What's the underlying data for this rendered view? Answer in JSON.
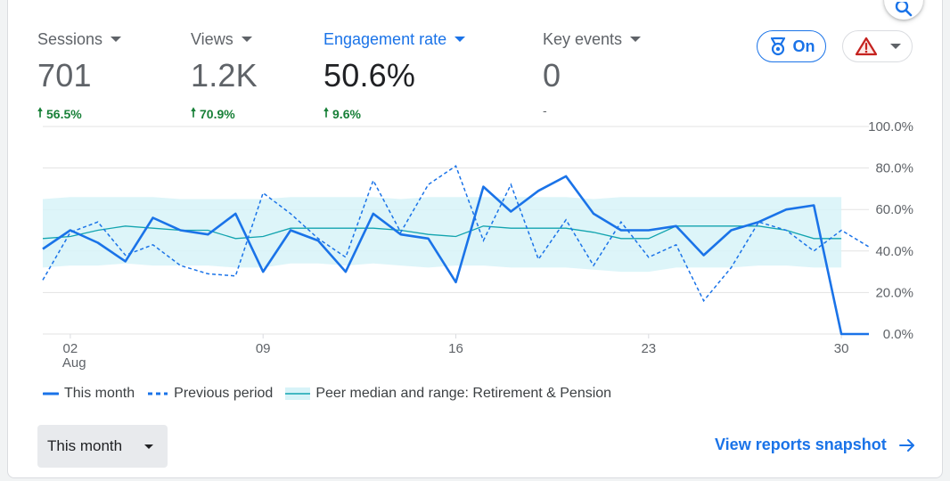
{
  "metrics": [
    {
      "label": "Sessions",
      "value": "701",
      "delta": "56.5%",
      "direction": "up"
    },
    {
      "label": "Views",
      "value": "1.2K",
      "delta": "70.9%",
      "direction": "up"
    },
    {
      "label": "Engagement rate",
      "value": "50.6%",
      "delta": "9.6%",
      "direction": "up",
      "active": true
    },
    {
      "label": "Key events",
      "value": "0",
      "delta": "-",
      "direction": "none"
    }
  ],
  "chips": {
    "insights_label": "On",
    "insights_icon": "award-ribbon-icon",
    "warning_icon": "warning-triangle-icon"
  },
  "colors": {
    "accent": "#1a73e8",
    "positive": "#188038",
    "peer_line": "#12a4af",
    "peer_band": "#d7f3f8",
    "warning": "#c5221f"
  },
  "chart_data": {
    "type": "line",
    "xlabel": "",
    "ylabel": "",
    "x_month_label": "Aug",
    "x_ticks": [
      {
        "day": 2,
        "label": "02"
      },
      {
        "day": 9,
        "label": "09"
      },
      {
        "day": 16,
        "label": "16"
      },
      {
        "day": 23,
        "label": "23"
      },
      {
        "day": 30,
        "label": "30"
      }
    ],
    "x_range": [
      1,
      31
    ],
    "ylim": [
      0,
      100
    ],
    "y_ticks": [
      "0.0%",
      "20.0%",
      "40.0%",
      "60.0%",
      "80.0%",
      "100.0%"
    ],
    "y_tick_values": [
      0,
      20,
      40,
      60,
      80,
      100
    ],
    "grid": true,
    "legend_position": "bottom-left",
    "series": [
      {
        "name": "This month",
        "style": "solid",
        "x": [
          1,
          2,
          3,
          4,
          5,
          6,
          7,
          8,
          9,
          10,
          11,
          12,
          13,
          14,
          15,
          16,
          17,
          18,
          19,
          20,
          21,
          22,
          23,
          24,
          25,
          26,
          27,
          28,
          29,
          30,
          31
        ],
        "values": [
          41,
          50,
          44,
          35,
          56,
          50,
          48,
          58,
          30,
          50,
          45,
          30,
          58,
          48,
          46,
          25,
          71,
          59,
          69,
          76,
          58,
          50,
          50,
          52,
          38,
          50,
          54,
          60,
          62,
          0,
          0
        ]
      },
      {
        "name": "Previous period",
        "style": "dashed",
        "x": [
          1,
          2,
          3,
          4,
          5,
          6,
          7,
          8,
          9,
          10,
          11,
          12,
          13,
          14,
          15,
          16,
          17,
          18,
          19,
          20,
          21,
          22,
          23,
          24,
          25,
          26,
          27,
          28,
          29,
          30,
          31
        ],
        "values": [
          26,
          49,
          54,
          38,
          43,
          33,
          29,
          28,
          68,
          58,
          46,
          37,
          74,
          49,
          72,
          81,
          45,
          72,
          36,
          55,
          33,
          54,
          37,
          43,
          16,
          32,
          54,
          50,
          40,
          50,
          42
        ]
      },
      {
        "name": "Peer median and range: Retirement & Pension",
        "style": "band",
        "x": [
          1,
          2,
          3,
          4,
          5,
          6,
          7,
          8,
          9,
          10,
          11,
          12,
          13,
          14,
          15,
          16,
          17,
          18,
          19,
          20,
          21,
          22,
          23,
          24,
          25,
          26,
          27,
          28,
          29,
          30
        ],
        "values": [
          46,
          47,
          50,
          52,
          51,
          50,
          50,
          46,
          47,
          51,
          51,
          51,
          51,
          50,
          48,
          47,
          52,
          51,
          51,
          51,
          49,
          46,
          46,
          52,
          52,
          52,
          52,
          50,
          46,
          46
        ],
        "range_low": [
          32,
          33,
          33,
          34,
          33,
          33,
          33,
          32,
          32,
          34,
          34,
          33,
          34,
          33,
          32,
          33,
          33,
          32,
          32,
          32,
          31,
          30,
          30,
          32,
          32,
          32,
          33,
          33,
          32,
          32
        ],
        "range_high": [
          65,
          66,
          66,
          66,
          66,
          65,
          65,
          65,
          65,
          66,
          66,
          66,
          66,
          65,
          66,
          66,
          66,
          66,
          66,
          66,
          65,
          66,
          66,
          66,
          66,
          66,
          66,
          66,
          66,
          66
        ]
      }
    ]
  },
  "footer": {
    "period_label": "This month",
    "snapshot_label": "View reports snapshot"
  }
}
